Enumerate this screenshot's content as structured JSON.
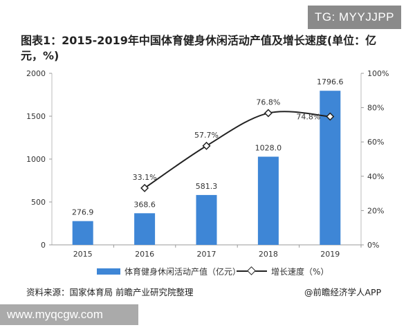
{
  "watermark_badge": "TG: MYYJJPP",
  "site_watermark": "www.myqcgw.com",
  "source_text": "资料来源：国家体育局 前瞻产业研究院整理",
  "credit_text": "@前瞻经济学人APP",
  "chart_data": {
    "type": "bar",
    "title": "图表1：2015-2019年中国体育健身休闲活动产值及增长速度(单位：亿元，%)",
    "categories": [
      "2015",
      "2016",
      "2017",
      "2018",
      "2019"
    ],
    "series": [
      {
        "name": "体育健身休闲活动产值（亿元）",
        "type": "bar",
        "axis": "left",
        "color": "#3e86d6",
        "values": [
          276.9,
          368.6,
          581.3,
          1028.0,
          1796.6
        ],
        "labels": [
          "276.9",
          "368.6",
          "581.3",
          "1028.0",
          "1796.6"
        ]
      },
      {
        "name": "增长速度（%）",
        "type": "line",
        "axis": "right",
        "color": "#222222",
        "values": [
          null,
          33.1,
          57.7,
          76.8,
          74.8
        ],
        "labels": [
          "",
          "33.1%",
          "57.7%",
          "76.8%",
          "74.8%"
        ]
      }
    ],
    "y_left": {
      "min": 0,
      "max": 2000,
      "ticks": [
        "0",
        "500",
        "1000",
        "1500",
        "2000"
      ]
    },
    "y_right": {
      "min": 0,
      "max": 100,
      "ticks": [
        "0%",
        "20%",
        "40%",
        "60%",
        "80%",
        "100%"
      ]
    },
    "legend_position": "bottom",
    "grid": false
  }
}
